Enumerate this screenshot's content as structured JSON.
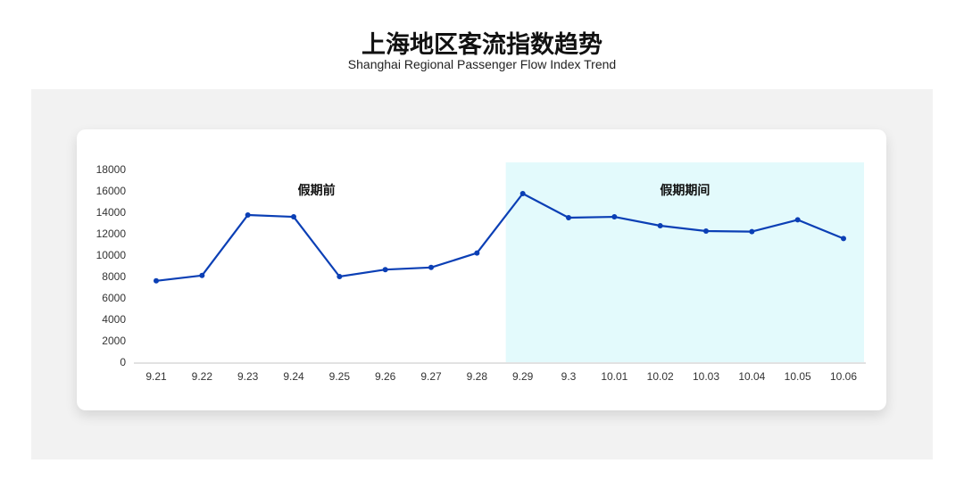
{
  "header": {
    "title": "上海地区客流指数趋势",
    "subtitle": "Shanghai Regional Passenger Flow Index Trend"
  },
  "chart_data": {
    "type": "line",
    "title": "",
    "xlabel": "",
    "ylabel": "",
    "categories": [
      "9.21",
      "9.22",
      "9.23",
      "9.24",
      "9.25",
      "9.26",
      "9.27",
      "9.28",
      "9.29",
      "9.3",
      "10.01",
      "10.02",
      "10.03",
      "10.04",
      "10.05",
      "10.06"
    ],
    "values": [
      7600,
      8100,
      13750,
      13580,
      8000,
      8650,
      8850,
      10200,
      15750,
      13500,
      13580,
      12750,
      12250,
      12200,
      13300,
      11550
    ],
    "ylim": [
      0,
      18000
    ],
    "yticks": [
      0,
      2000,
      4000,
      6000,
      8000,
      10000,
      12000,
      14000,
      16000,
      18000
    ],
    "grid": false,
    "line_color": "#0b3fb5",
    "annotations": [
      {
        "text": "假期前",
        "region": [
          "9.21",
          "9.28"
        ],
        "shaded": false
      },
      {
        "text": "假期期间",
        "region": [
          "9.29",
          "10.06"
        ],
        "shaded": true,
        "color": "#e3fafc"
      }
    ]
  }
}
